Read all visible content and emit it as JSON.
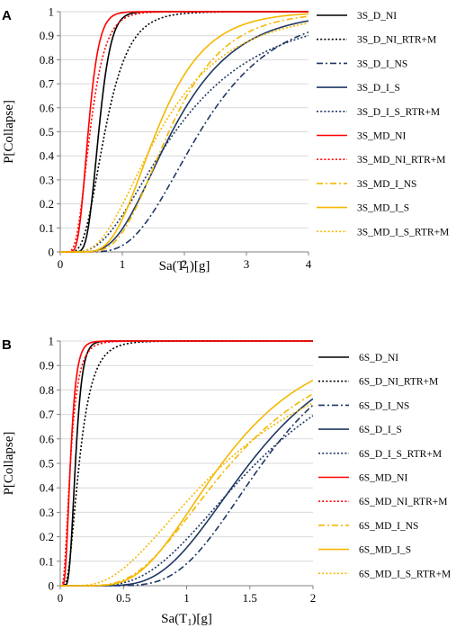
{
  "chart_data": [
    {
      "panel": "A",
      "type": "line",
      "xlabel": "Sa(T₁)[g]",
      "xlabel_main": "Sa(T",
      "xlabel_sub": "1",
      "xlabel_tail": ")[g]",
      "ylabel": "P[Collapse]",
      "xlim": [
        0,
        4
      ],
      "ylim": [
        0,
        1
      ],
      "xticks": [
        0,
        1,
        2,
        3,
        4
      ],
      "xtick_labels": [
        "0",
        "1",
        "2",
        "3",
        "4"
      ],
      "yticks": [
        0,
        0.1,
        0.2,
        0.3,
        0.4,
        0.5,
        0.6,
        0.7,
        0.8,
        0.9,
        1
      ],
      "ytick_labels": [
        "0",
        "0.1",
        "0.2",
        "0.3",
        "0.4",
        "0.5",
        "0.6",
        "0.7",
        "0.8",
        "0.9",
        "1"
      ],
      "grid": "horizontal",
      "legend_placement": "right",
      "series": [
        {
          "name": "3S_D_NI",
          "color": "#000000",
          "dash": "solid",
          "median": 0.62,
          "beta": 0.25
        },
        {
          "name": "3S_D_NI_RTR+M",
          "color": "#000000",
          "dash": "dot",
          "median": 0.72,
          "beta": 0.42
        },
        {
          "name": "3S_D_I_NS",
          "color": "#1f3864",
          "dash": "dashdot",
          "median": 2.25,
          "beta": 0.42
        },
        {
          "name": "3S_D_I_S",
          "color": "#1f3864",
          "dash": "solid",
          "median": 1.8,
          "beta": 0.45
        },
        {
          "name": "3S_D_I_S_RTR+M",
          "color": "#1f3864",
          "dash": "dot",
          "median": 1.85,
          "beta": 0.6
        },
        {
          "name": "3S_MD_NI",
          "color": "#ff0000",
          "dash": "solid",
          "median": 0.45,
          "beta": 0.3
        },
        {
          "name": "3S_MD_NI_RTR+M",
          "color": "#ff0000",
          "dash": "dot",
          "median": 0.48,
          "beta": 0.4
        },
        {
          "name": "3S_MD_I_NS",
          "color": "#f5b800",
          "dash": "dashdot",
          "median": 1.75,
          "beta": 0.4
        },
        {
          "name": "3S_MD_I_S",
          "color": "#f5b800",
          "dash": "solid",
          "median": 1.55,
          "beta": 0.4
        },
        {
          "name": "3S_MD_I_S_RTR+M",
          "color": "#f5b800",
          "dash": "dot",
          "median": 1.6,
          "beta": 0.55
        }
      ]
    },
    {
      "panel": "B",
      "type": "line",
      "xlabel": "Sa(T₁)[g]",
      "xlabel_main": "Sa(T",
      "xlabel_sub": "1",
      "xlabel_tail": ")[g]",
      "ylabel": "P[Collapse]",
      "xlim": [
        0,
        2
      ],
      "ylim": [
        0,
        1
      ],
      "xticks": [
        0,
        0.5,
        1,
        1.5,
        2
      ],
      "xtick_labels": [
        "0",
        "0.5",
        "1",
        "1.5",
        "2"
      ],
      "yticks": [
        0,
        0.1,
        0.2,
        0.3,
        0.4,
        0.5,
        0.6,
        0.7,
        0.8,
        0.9,
        1
      ],
      "ytick_labels": [
        "0",
        "0.1",
        "0.2",
        "0.3",
        "0.4",
        "0.5",
        "0.6",
        "0.7",
        "0.8",
        "0.9",
        "1"
      ],
      "grid": "horizontal",
      "legend_placement": "right",
      "series": [
        {
          "name": "6S_D_NI",
          "color": "#000000",
          "dash": "solid",
          "median": 0.12,
          "beta": 0.35
        },
        {
          "name": "6S_D_NI_RTR+M",
          "color": "#000000",
          "dash": "dot",
          "median": 0.15,
          "beta": 0.55
        },
        {
          "name": "6S_D_I_NS",
          "color": "#1f3864",
          "dash": "dashdot",
          "median": 1.6,
          "beta": 0.35
        },
        {
          "name": "6S_D_I_S",
          "color": "#1f3864",
          "dash": "solid",
          "median": 1.5,
          "beta": 0.4
        },
        {
          "name": "6S_D_I_S_RTR+M",
          "color": "#1f3864",
          "dash": "dot",
          "median": 1.55,
          "beta": 0.5
        },
        {
          "name": "6S_MD_NI",
          "color": "#ff0000",
          "dash": "solid",
          "median": 0.08,
          "beta": 0.45
        },
        {
          "name": "6S_MD_NI_RTR+M",
          "color": "#ff0000",
          "dash": "dot",
          "median": 0.08,
          "beta": 0.6
        },
        {
          "name": "6S_MD_I_NS",
          "color": "#f5b800",
          "dash": "dashdot",
          "median": 1.35,
          "beta": 0.5
        },
        {
          "name": "6S_MD_I_S",
          "color": "#f5b800",
          "dash": "solid",
          "median": 1.28,
          "beta": 0.45
        },
        {
          "name": "6S_MD_I_S_RTR+M",
          "color": "#f5b800",
          "dash": "dot",
          "median": 1.3,
          "beta": 0.65
        }
      ]
    }
  ]
}
